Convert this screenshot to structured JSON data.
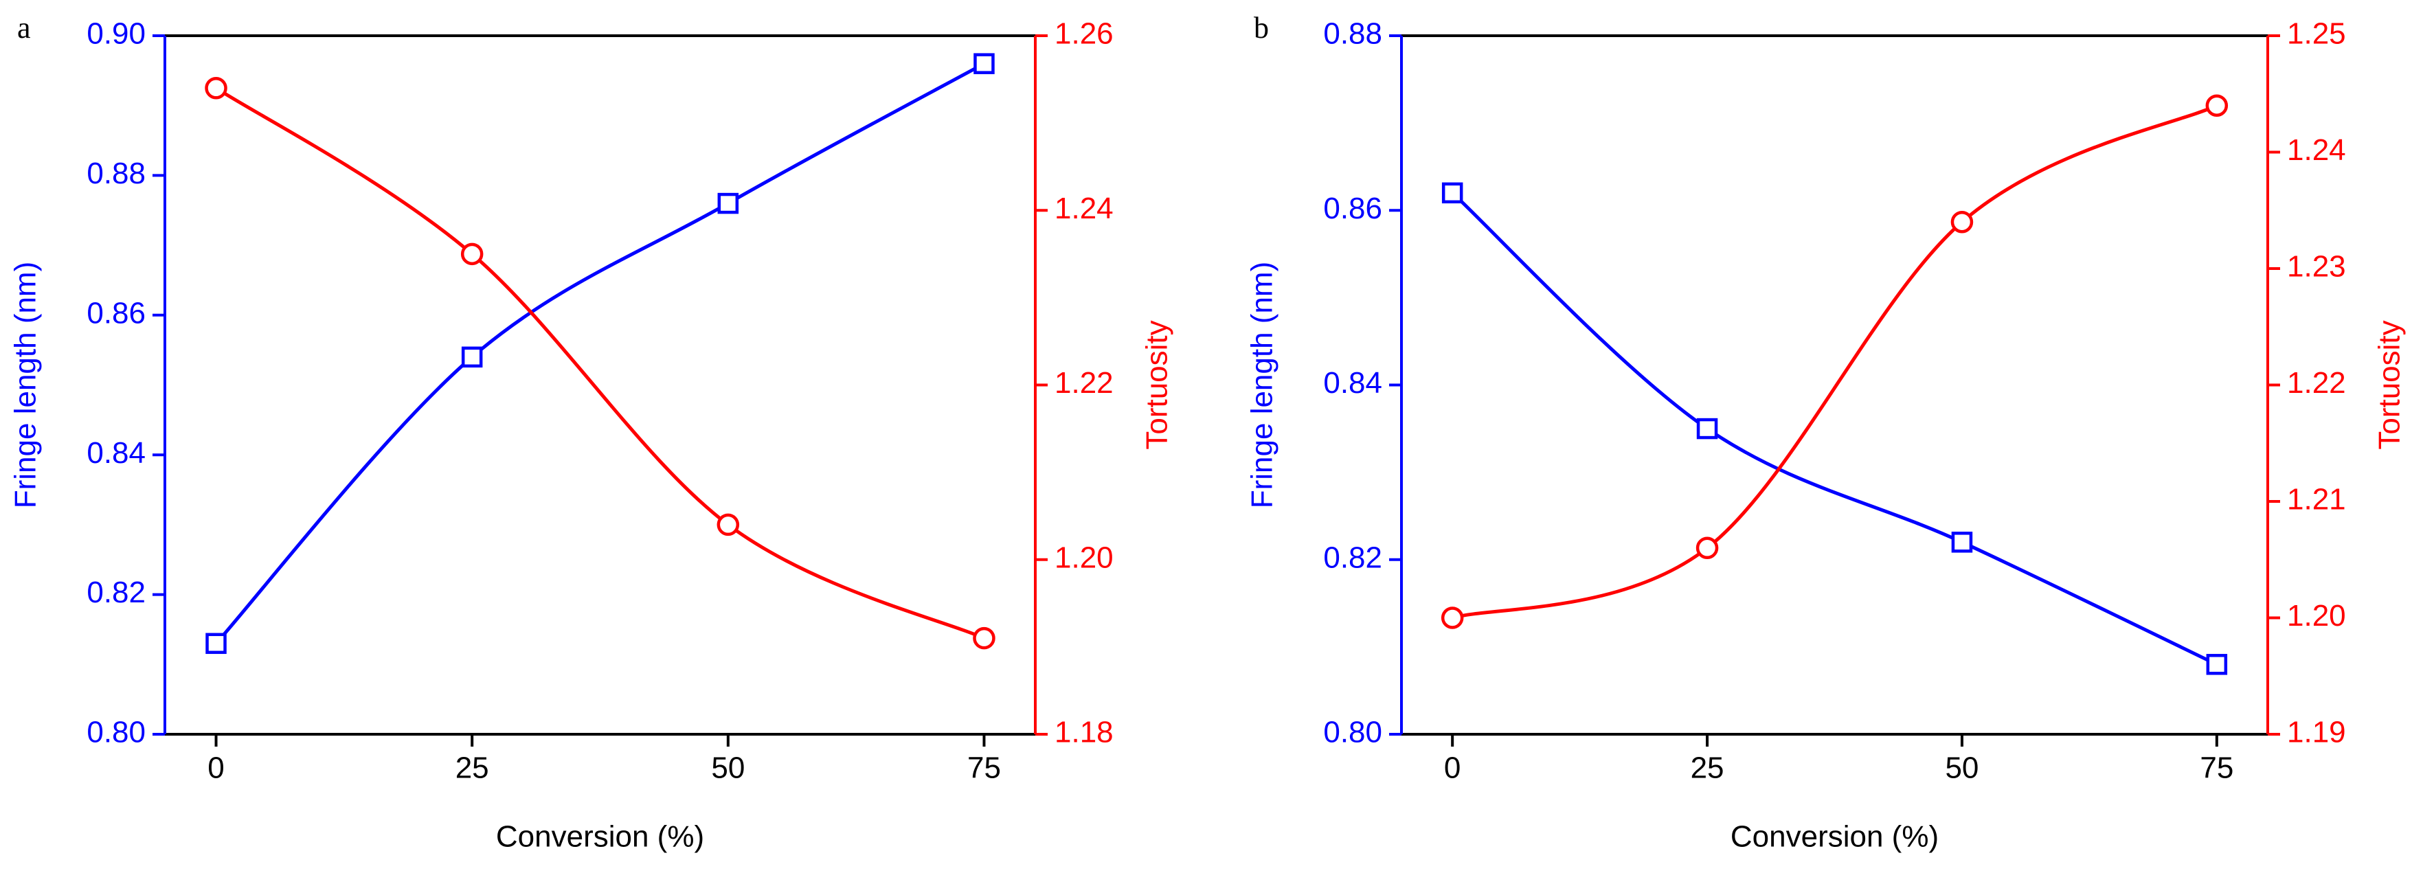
{
  "chart_data": [
    {
      "type": "line",
      "panel": "a",
      "xlabel": "Conversion (%)",
      "ylabel": "Fringe length (nm)",
      "y2label": "Tortuosity",
      "x": [
        0,
        25,
        50,
        75
      ],
      "xlim": [
        -5,
        80
      ],
      "xticks": [
        0,
        25,
        50,
        75
      ],
      "ylim": [
        0.8,
        0.9
      ],
      "yticks": [
        {
          "value": 0.8,
          "label": "0.80"
        },
        {
          "value": 0.82,
          "label": "0.82"
        },
        {
          "value": 0.84,
          "label": "0.84"
        },
        {
          "value": 0.86,
          "label": "0.86"
        },
        {
          "value": 0.88,
          "label": "0.88"
        },
        {
          "value": 0.9,
          "label": "0.90"
        }
      ],
      "y2lim": [
        1.18,
        1.26
      ],
      "y2ticks": [
        {
          "value": 1.18,
          "label": "1.18"
        },
        {
          "value": 1.2,
          "label": "1.20"
        },
        {
          "value": 1.22,
          "label": "1.22"
        },
        {
          "value": 1.24,
          "label": "1.24"
        },
        {
          "value": 1.26,
          "label": "1.26"
        }
      ],
      "series": [
        {
          "color": "#0000ff",
          "marker": "square",
          "axis": "y",
          "values": [
            0.813,
            0.854,
            0.876,
            0.896
          ]
        },
        {
          "color": "#ff0000",
          "marker": "circle",
          "axis": "y2",
          "values": [
            1.254,
            1.235,
            1.204,
            1.191
          ]
        }
      ]
    },
    {
      "type": "line",
      "panel": "b",
      "xlabel": "Conversion (%)",
      "ylabel": "Fringe length (nm)",
      "y2label": "Tortuosity",
      "x": [
        0,
        25,
        50,
        75
      ],
      "xlim": [
        -5,
        80
      ],
      "xticks": [
        0,
        25,
        50,
        75
      ],
      "ylim": [
        0.8,
        0.88
      ],
      "yticks": [
        {
          "value": 0.8,
          "label": "0.80"
        },
        {
          "value": 0.82,
          "label": "0.82"
        },
        {
          "value": 0.84,
          "label": "0.84"
        },
        {
          "value": 0.86,
          "label": "0.86"
        },
        {
          "value": 0.88,
          "label": "0.88"
        }
      ],
      "y2lim": [
        1.19,
        1.25
      ],
      "y2ticks": [
        {
          "value": 1.19,
          "label": "1.19"
        },
        {
          "value": 1.2,
          "label": "1.20"
        },
        {
          "value": 1.21,
          "label": "1.21"
        },
        {
          "value": 1.22,
          "label": "1.22"
        },
        {
          "value": 1.23,
          "label": "1.23"
        },
        {
          "value": 1.24,
          "label": "1.24"
        },
        {
          "value": 1.25,
          "label": "1.25"
        }
      ],
      "series": [
        {
          "color": "#0000ff",
          "marker": "square",
          "axis": "y",
          "values": [
            0.862,
            0.835,
            0.822,
            0.808
          ]
        },
        {
          "color": "#ff0000",
          "marker": "circle",
          "axis": "y2",
          "values": [
            1.2,
            1.206,
            1.234,
            1.244
          ]
        }
      ]
    }
  ]
}
